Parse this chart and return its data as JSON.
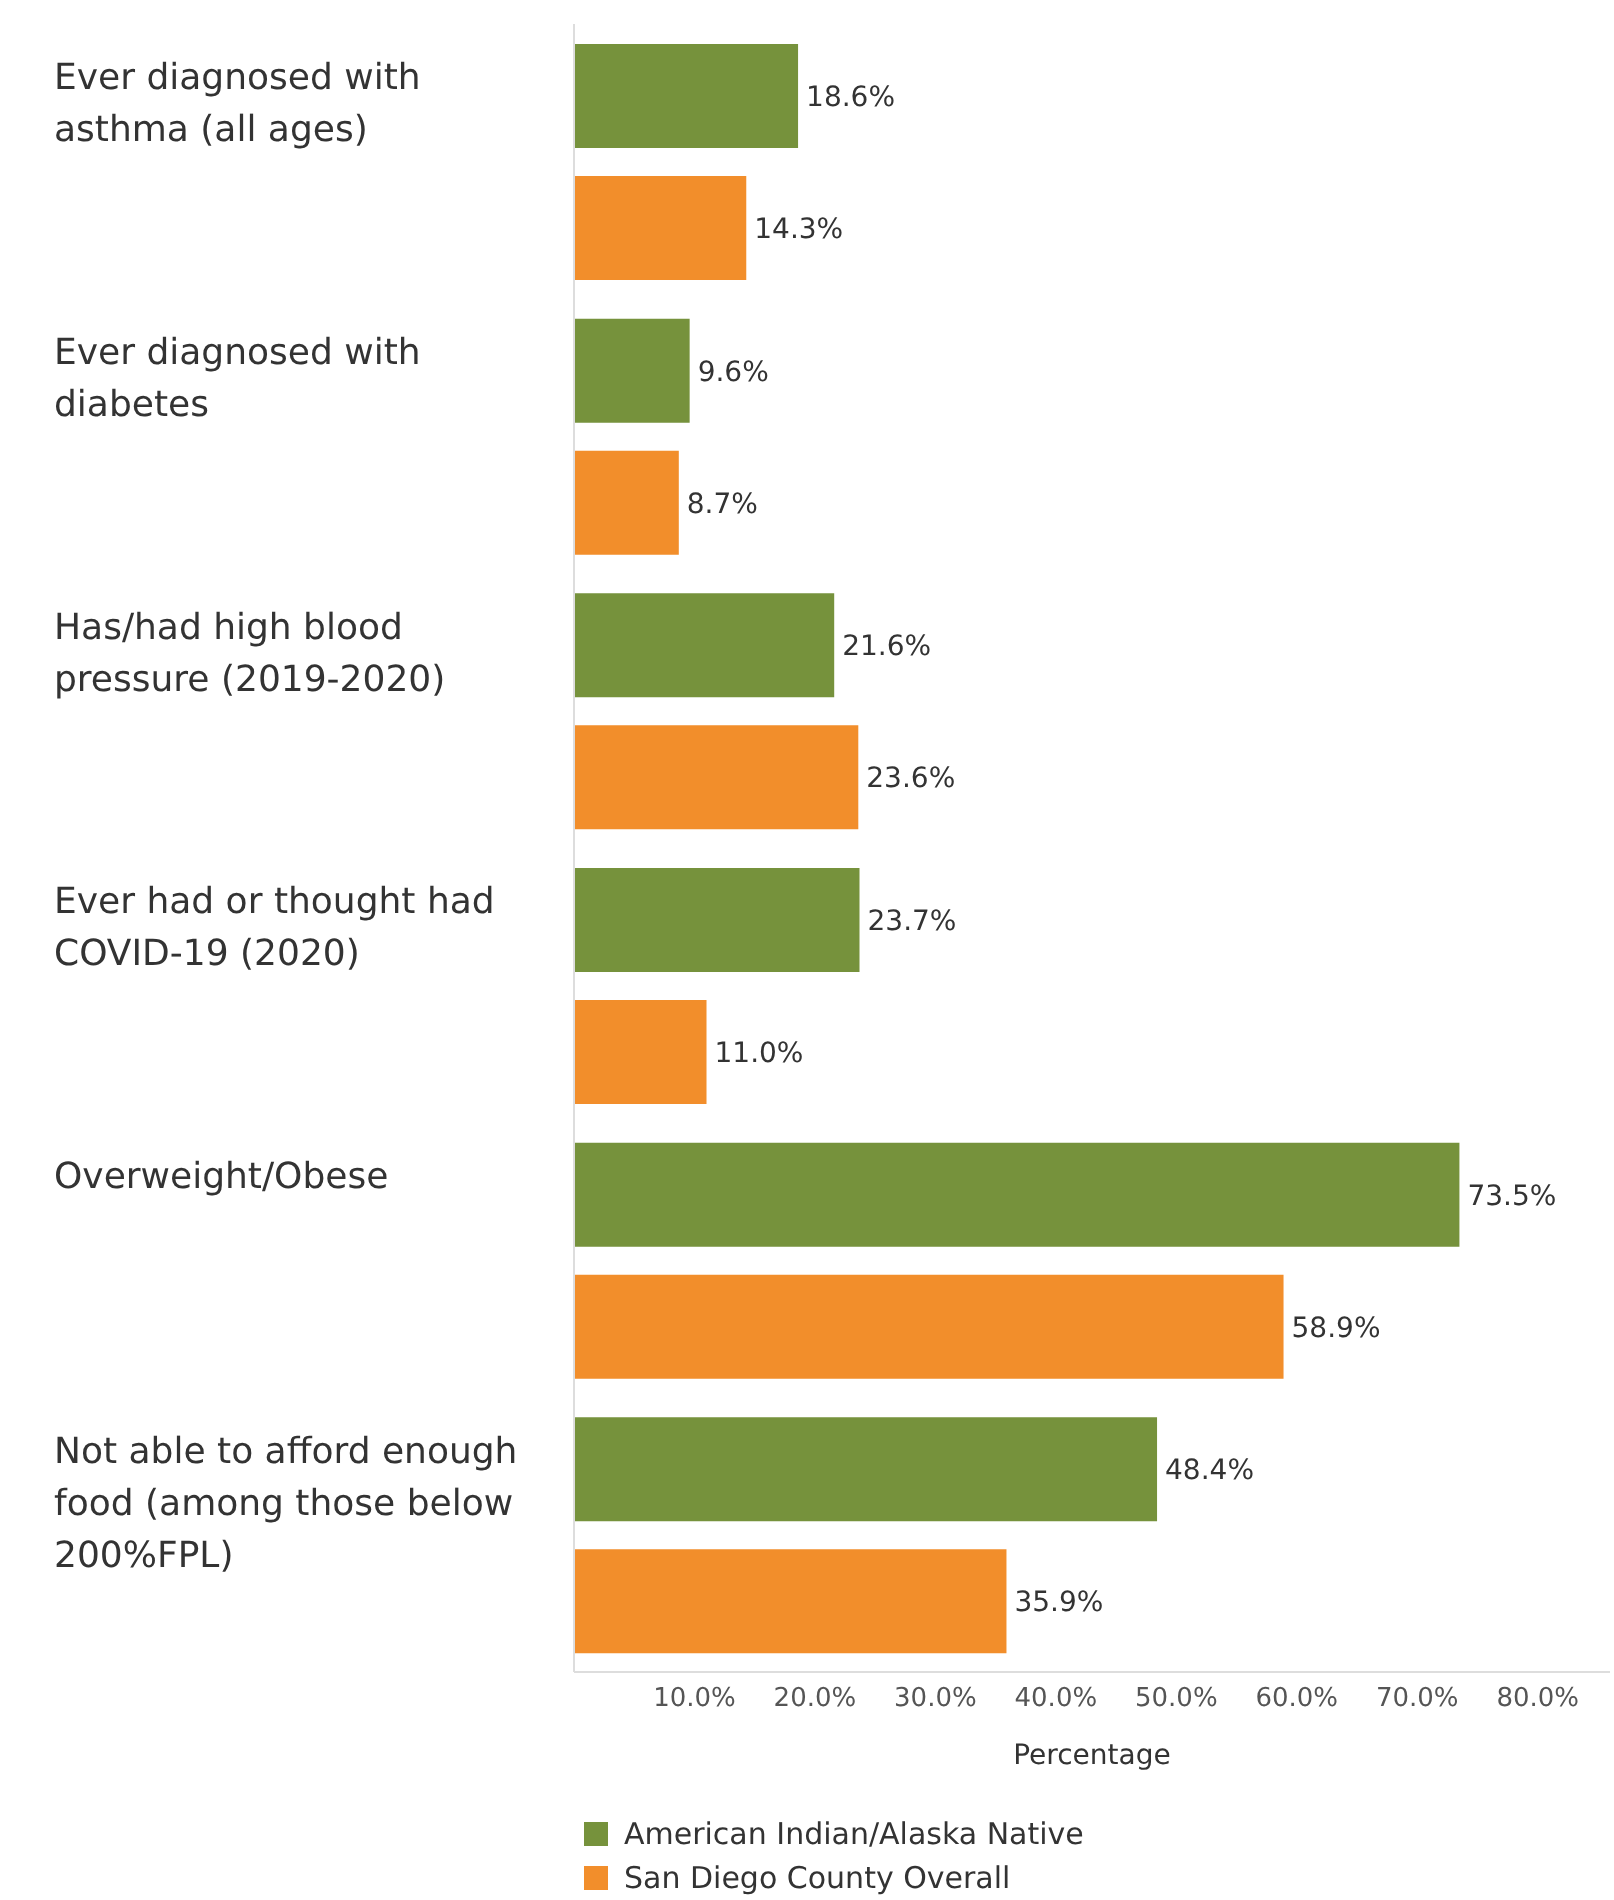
{
  "chart_data": {
    "type": "bar",
    "orientation": "horizontal",
    "xlabel": "Percentage",
    "categories": [
      "Ever diagnosed with asthma (all ages)",
      "Ever diagnosed with diabetes",
      "Has/had high blood pressure (2019-2020)",
      "Ever had or thought had COVID-19 (2020)",
      "Overweight/Obese",
      "Not able to afford enough food (among those below 200%FPL)"
    ],
    "series": [
      {
        "name": "American Indian/Alaska Native",
        "color": "#76923c",
        "values": [
          18.6,
          9.6,
          21.6,
          23.7,
          73.5,
          48.4
        ],
        "value_labels": [
          "18.6%",
          "9.6%",
          "21.6%",
          "23.7%",
          "73.5%",
          "48.4%"
        ]
      },
      {
        "name": "San Diego County Overall",
        "color": "#f28e2b",
        "values": [
          14.3,
          8.7,
          23.6,
          11.0,
          58.9,
          35.9
        ],
        "value_labels": [
          "14.3%",
          "8.7%",
          "23.6%",
          "11.0%",
          "58.9%",
          "35.9%"
        ]
      }
    ],
    "xlim": [
      0,
      86
    ],
    "xticks": [
      {
        "value": 10,
        "label": "10.0%"
      },
      {
        "value": 20,
        "label": "20.0%"
      },
      {
        "value": 30,
        "label": "30.0%"
      },
      {
        "value": 40,
        "label": "40.0%"
      },
      {
        "value": 50,
        "label": "50.0%"
      },
      {
        "value": 60,
        "label": "60.0%"
      },
      {
        "value": 70,
        "label": "70.0%"
      },
      {
        "value": 80,
        "label": "80.0%"
      }
    ],
    "grid": false,
    "legend": "bottom"
  }
}
